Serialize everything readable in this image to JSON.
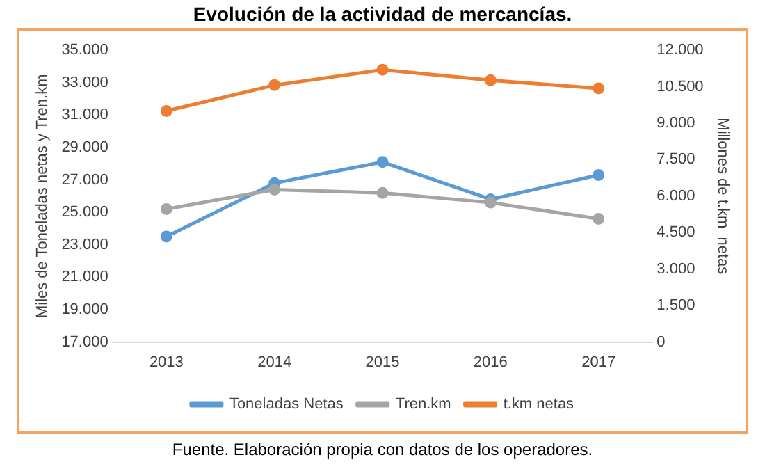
{
  "chart_data": {
    "type": "line",
    "title": "Evolución de la actividad de mercancías.",
    "ylabel": "Miles de Toneladas netas y Tren.km",
    "y2label": "Millones de t.km  netas",
    "categories": [
      "2013",
      "2014",
      "2015",
      "2016",
      "2017"
    ],
    "series": [
      {
        "name": "Toneladas Netas",
        "color": "#5b9bd5",
        "values": [
          23500,
          26800,
          28100,
          25800,
          27300
        ]
      },
      {
        "name": "Tren.km",
        "color": "#a5a5a5",
        "values": [
          25200,
          26400,
          26200,
          25600,
          24600
        ]
      },
      {
        "name": "t.km netas",
        "color": "#ed7d31",
        "axis": "y2",
        "values": [
          9500,
          10560,
          11190,
          10760,
          10430
        ]
      }
    ],
    "ylim": [
      17000,
      35000
    ],
    "yticks": [
      {
        "value": 17000,
        "label": "17.000"
      },
      {
        "value": 19000,
        "label": "19.000"
      },
      {
        "value": 21000,
        "label": "21.000"
      },
      {
        "value": 23000,
        "label": "23.000"
      },
      {
        "value": 25000,
        "label": "25.000"
      },
      {
        "value": 27000,
        "label": "27.000"
      },
      {
        "value": 29000,
        "label": "29.000"
      },
      {
        "value": 31000,
        "label": "31.000"
      },
      {
        "value": 33000,
        "label": "33.000"
      },
      {
        "value": 35000,
        "label": "35.000"
      }
    ],
    "y2lim": [
      0,
      12000
    ],
    "y2ticks": [
      0,
      {
        "value": 1500,
        "label": "1.500"
      },
      {
        "value": 3000,
        "label": "3.000"
      },
      {
        "value": 4500,
        "label": "4.500"
      },
      {
        "value": 6000,
        "label": "6.000"
      },
      {
        "value": 7500,
        "label": "7.500"
      },
      {
        "value": 9000,
        "label": "9.000"
      },
      {
        "value": 10500,
        "label": "10.500"
      },
      {
        "value": 12000,
        "label": "12.000"
      }
    ],
    "grid": false,
    "legend": "bottom",
    "marker": "circle",
    "line_style": "solid",
    "annotations": [
      "Fuente. Elaboración propia con datos de los operadores."
    ]
  }
}
